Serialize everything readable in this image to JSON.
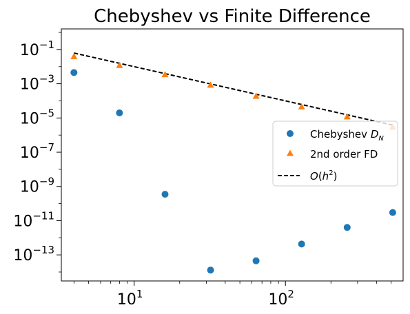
{
  "chart_data": {
    "type": "scatter",
    "title": "Chebyshev vs Finite Difference",
    "xlabel": "",
    "ylabel": "",
    "xscale": "log",
    "yscale": "log",
    "xlim": [
      3.3,
      600
    ],
    "ylim": [
      3e-15,
      1.6
    ],
    "x_ticks": [
      {
        "value": 10,
        "base": "10",
        "exp": "1"
      },
      {
        "value": 100,
        "base": "10",
        "exp": "2"
      }
    ],
    "y_ticks": [
      {
        "value": 0.1,
        "base": "10",
        "exp": "−1"
      },
      {
        "value": 0.001,
        "base": "10",
        "exp": "−3"
      },
      {
        "value": 1e-05,
        "base": "10",
        "exp": "−5"
      },
      {
        "value": 1e-07,
        "base": "10",
        "exp": "−7"
      },
      {
        "value": 1e-09,
        "base": "10",
        "exp": "−9"
      },
      {
        "value": 1e-11,
        "base": "10",
        "exp": "−11"
      },
      {
        "value": 1e-13,
        "base": "10",
        "exp": "−13"
      }
    ],
    "grid": false,
    "legend": "center-right",
    "series": [
      {
        "name": "Chebyshev D_N",
        "legend_main": "Chebyshev ",
        "legend_italic": "D",
        "legend_sub": "N",
        "marker": "circle",
        "color": "#1f77b4",
        "x": [
          4,
          8,
          16,
          32,
          64,
          128,
          256,
          512
        ],
        "y": [
          0.0045,
          2e-05,
          3.5e-10,
          1.3e-14,
          4.5e-14,
          4.3e-13,
          4e-12,
          3e-11
        ]
      },
      {
        "name": "2nd order FD",
        "legend_main": "2nd order FD",
        "marker": "triangle",
        "color": "#ff7f0e",
        "x": [
          4,
          8,
          16,
          32,
          64,
          128,
          256,
          512
        ],
        "y": [
          0.04,
          0.012,
          0.0035,
          0.00085,
          0.00019,
          4.6e-05,
          1.2e-05,
          3e-06
        ]
      },
      {
        "name": "O(h^2)",
        "legend_italic": "O",
        "legend_main": "(",
        "legend_italic2": "h",
        "legend_sup": "2",
        "legend_end": ")",
        "line": "dashed",
        "color": "#000000",
        "x": [
          4,
          512
        ],
        "y": [
          0.0625,
          3.81e-06
        ]
      }
    ]
  }
}
